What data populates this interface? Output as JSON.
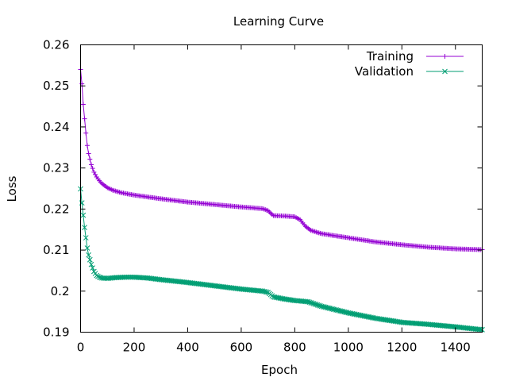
{
  "chart_data": {
    "type": "line",
    "title": "Learning Curve",
    "xlabel": "Epoch",
    "ylabel": "Loss",
    "xlim": [
      0,
      1500
    ],
    "ylim": [
      0.19,
      0.26
    ],
    "xticks": [
      0,
      200,
      400,
      600,
      800,
      1000,
      1200,
      1400
    ],
    "yticks": [
      0.19,
      0.2,
      0.21,
      0.22,
      0.23,
      0.24,
      0.25,
      0.26
    ],
    "ytick_labels": [
      "0.19",
      "0.2",
      "0.21",
      "0.22",
      "0.23",
      "0.24",
      "0.25",
      "0.26"
    ],
    "grid": false,
    "legend_position": "top-right",
    "series": [
      {
        "name": "Training",
        "color": "#9400d3",
        "marker": "plus",
        "points": [
          [
            0,
            0.254
          ],
          [
            5,
            0.2505
          ],
          [
            10,
            0.2455
          ],
          [
            15,
            0.242
          ],
          [
            20,
            0.2385
          ],
          [
            25,
            0.2355
          ],
          [
            30,
            0.2335
          ],
          [
            40,
            0.2308
          ],
          [
            50,
            0.229
          ],
          [
            60,
            0.2278
          ],
          [
            70,
            0.2269
          ],
          [
            80,
            0.2262
          ],
          [
            100,
            0.2252
          ],
          [
            120,
            0.2246
          ],
          [
            150,
            0.224
          ],
          [
            200,
            0.2234
          ],
          [
            300,
            0.2225
          ],
          [
            400,
            0.2217
          ],
          [
            500,
            0.2211
          ],
          [
            600,
            0.2205
          ],
          [
            680,
            0.2201
          ],
          [
            700,
            0.2196
          ],
          [
            720,
            0.2184
          ],
          [
            760,
            0.2183
          ],
          [
            800,
            0.2181
          ],
          [
            820,
            0.2174
          ],
          [
            840,
            0.2158
          ],
          [
            860,
            0.2148
          ],
          [
            900,
            0.214
          ],
          [
            1000,
            0.213
          ],
          [
            1100,
            0.212
          ],
          [
            1200,
            0.2113
          ],
          [
            1300,
            0.2107
          ],
          [
            1400,
            0.2103
          ],
          [
            1500,
            0.2101
          ]
        ]
      },
      {
        "name": "Validation",
        "color": "#009e73",
        "marker": "cross",
        "points": [
          [
            0,
            0.2249
          ],
          [
            5,
            0.2215
          ],
          [
            10,
            0.2185
          ],
          [
            15,
            0.2155
          ],
          [
            20,
            0.213
          ],
          [
            25,
            0.2105
          ],
          [
            30,
            0.2088
          ],
          [
            40,
            0.2065
          ],
          [
            50,
            0.2048
          ],
          [
            60,
            0.2038
          ],
          [
            70,
            0.2034
          ],
          [
            80,
            0.2032
          ],
          [
            100,
            0.2031
          ],
          [
            130,
            0.2033
          ],
          [
            170,
            0.2034
          ],
          [
            200,
            0.2034
          ],
          [
            250,
            0.2032
          ],
          [
            300,
            0.2028
          ],
          [
            400,
            0.2021
          ],
          [
            500,
            0.2013
          ],
          [
            600,
            0.2005
          ],
          [
            680,
            0.2
          ],
          [
            700,
            0.1997
          ],
          [
            720,
            0.1986
          ],
          [
            760,
            0.1981
          ],
          [
            800,
            0.1977
          ],
          [
            820,
            0.1976
          ],
          [
            850,
            0.1974
          ],
          [
            900,
            0.1963
          ],
          [
            1000,
            0.1947
          ],
          [
            1100,
            0.1934
          ],
          [
            1200,
            0.1924
          ],
          [
            1300,
            0.1919
          ],
          [
            1400,
            0.1913
          ],
          [
            1500,
            0.1906
          ]
        ]
      }
    ]
  }
}
